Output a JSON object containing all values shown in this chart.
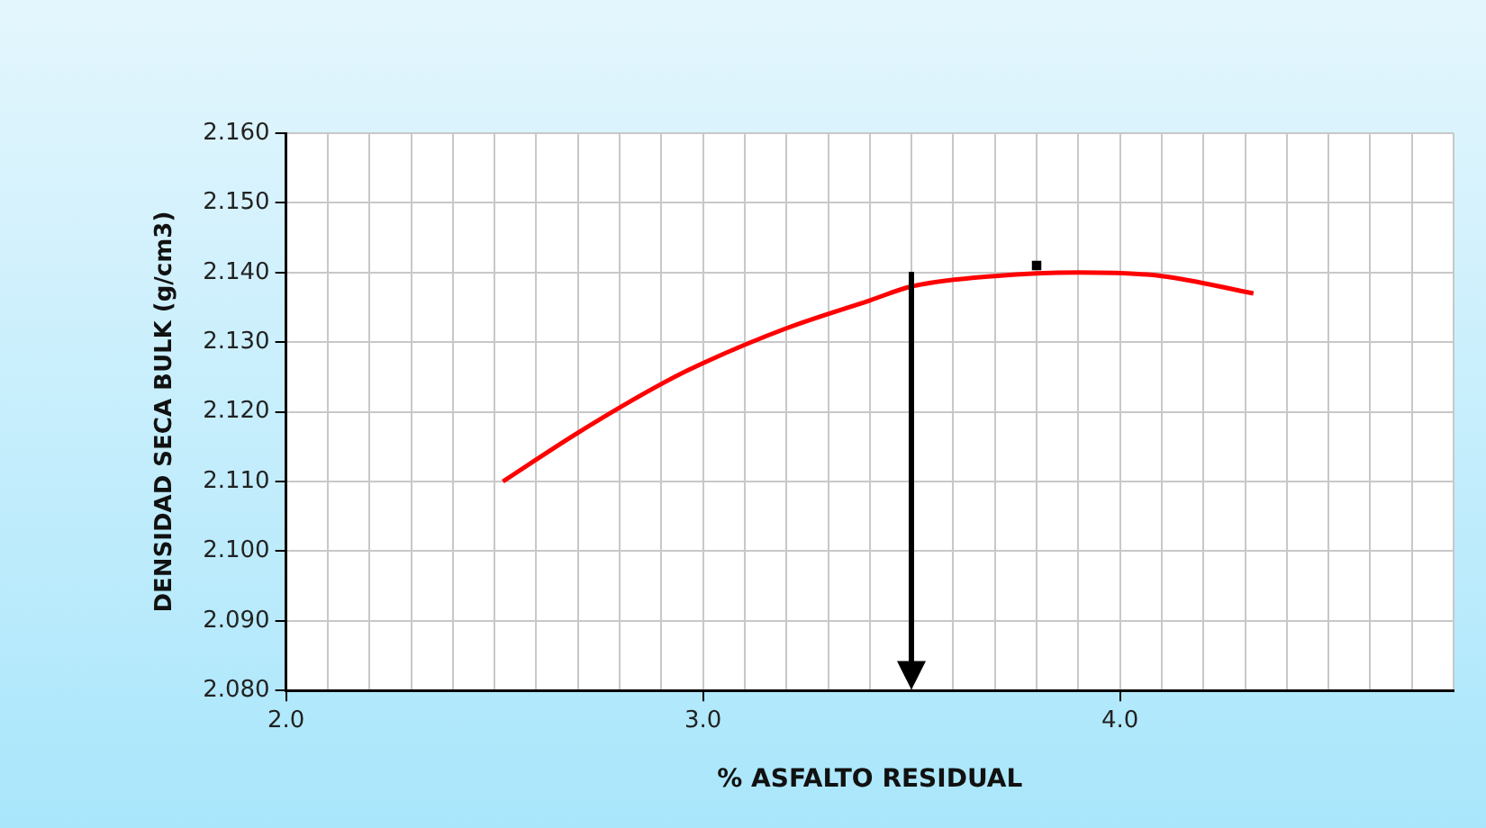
{
  "chart_data": {
    "type": "line",
    "xlabel": "% ASFALTO RESIDUAL",
    "ylabel": "DENSIDAD SECA BULK (g/cm3)",
    "xlim": [
      2.0,
      4.8
    ],
    "xticks": [
      {
        "value": 2.0,
        "label": "2.0"
      },
      {
        "value": 2.1,
        "label": null
      },
      {
        "value": 2.2,
        "label": null
      },
      {
        "value": 2.3,
        "label": null
      },
      {
        "value": 2.4,
        "label": null
      },
      {
        "value": 2.5,
        "label": null
      },
      {
        "value": 2.6,
        "label": null
      },
      {
        "value": 2.7,
        "label": null
      },
      {
        "value": 2.8,
        "label": null
      },
      {
        "value": 2.9,
        "label": null
      },
      {
        "value": 3.0,
        "label": "3.0"
      },
      {
        "value": 3.1,
        "label": null
      },
      {
        "value": 3.2,
        "label": null
      },
      {
        "value": 3.3,
        "label": null
      },
      {
        "value": 3.4,
        "label": null
      },
      {
        "value": 3.5,
        "label": null
      },
      {
        "value": 3.6,
        "label": null
      },
      {
        "value": 3.7,
        "label": null
      },
      {
        "value": 3.8,
        "label": null
      },
      {
        "value": 3.9,
        "label": null
      },
      {
        "value": 4.0,
        "label": "4.0"
      },
      {
        "value": 4.1,
        "label": null
      },
      {
        "value": 4.2,
        "label": null
      },
      {
        "value": 4.3,
        "label": null
      },
      {
        "value": 4.4,
        "label": null
      },
      {
        "value": 4.5,
        "label": null
      },
      {
        "value": 4.6,
        "label": null
      },
      {
        "value": 4.7,
        "label": null
      },
      {
        "value": 4.8,
        "label": null
      }
    ],
    "ylim": [
      2.08,
      2.16
    ],
    "yticks": [
      {
        "value": 2.08,
        "label": "2.080"
      },
      {
        "value": 2.09,
        "label": "2.090"
      },
      {
        "value": 2.1,
        "label": "2.100"
      },
      {
        "value": 2.11,
        "label": "2.110"
      },
      {
        "value": 2.12,
        "label": "2.120"
      },
      {
        "value": 2.13,
        "label": "2.130"
      },
      {
        "value": 2.14,
        "label": "2.140"
      },
      {
        "value": 2.15,
        "label": "2.150"
      },
      {
        "value": 2.16,
        "label": "2.160"
      }
    ],
    "grid": true,
    "legend": false,
    "series": [
      {
        "type": "line",
        "color": "#ff0000",
        "marker": "none",
        "x": [
          2.52,
          2.7,
          2.9,
          3.0,
          3.2,
          3.4,
          3.5,
          3.7,
          3.9,
          4.1,
          4.32
        ],
        "values": [
          2.11,
          2.117,
          2.124,
          2.127,
          2.132,
          2.136,
          2.138,
          2.1395,
          2.14,
          2.1395,
          2.137
        ]
      },
      {
        "type": "scatter",
        "color": "#000000",
        "marker": "square",
        "x": [
          3.8
        ],
        "values": [
          2.141
        ]
      }
    ],
    "ref_lines": [
      {
        "axis": "x",
        "value": 3.5,
        "color": "#000000"
      }
    ]
  }
}
